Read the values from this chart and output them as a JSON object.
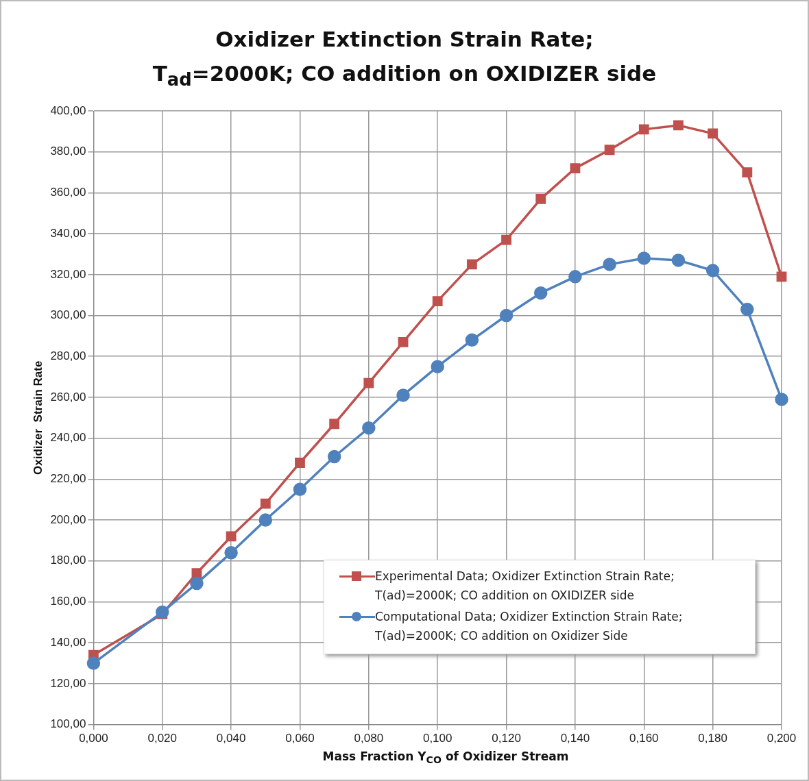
{
  "chart_data": {
    "type": "line",
    "title": "Oxidizer Extinction Strain Rate;\nT$_{ad}$=2000K; CO addition on OXIDIZER side",
    "xlabel": "Mass Fraction Y$_{CO}$ of Oxidizer Stream",
    "ylabel": "Oxidizer  Strain Rate",
    "x": [
      0,
      0.02,
      0.03,
      0.04,
      0.05,
      0.06,
      0.07,
      0.08,
      0.09,
      0.1,
      0.11,
      0.12,
      0.13,
      0.14,
      0.15,
      0.16,
      0.17,
      0.18,
      0.19,
      0.2
    ],
    "series": [
      {
        "name": "Experimental Data; Oxidizer Extinction Strain Rate; T(ad)=2000K; CO addition on OXIDIZER side",
        "color": "#c0504d",
        "marker": "square",
        "values": [
          134,
          154,
          174,
          192,
          208,
          228,
          247,
          267,
          287,
          307,
          325,
          337,
          357,
          372,
          381,
          391,
          393,
          389,
          370,
          319
        ]
      },
      {
        "name": "Computational Data; Oxidizer Extinction Strain Rate; T(ad)=2000K; CO addition on Oxidizer Side",
        "color": "#4f81bd",
        "marker": "circle",
        "values": [
          130,
          155,
          169,
          184,
          200,
          215,
          231,
          245,
          261,
          275,
          288,
          300,
          311,
          319,
          325,
          328,
          327,
          322,
          303,
          259
        ]
      }
    ],
    "xlim": [
      0,
      0.2
    ],
    "ylim": [
      100,
      400
    ],
    "xticks": [
      {
        "value": 0,
        "label": "0,000"
      },
      {
        "value": 0.02,
        "label": "0,020"
      },
      {
        "value": 0.04,
        "label": "0,040"
      },
      {
        "value": 0.06,
        "label": "0,060"
      },
      {
        "value": 0.08,
        "label": "0,080"
      },
      {
        "value": 0.1,
        "label": "0,100"
      },
      {
        "value": 0.12,
        "label": "0,120"
      },
      {
        "value": 0.14,
        "label": "0,140"
      },
      {
        "value": 0.16,
        "label": "0,160"
      },
      {
        "value": 0.18,
        "label": "0,180"
      },
      {
        "value": 0.2,
        "label": "0,200"
      }
    ],
    "yticks": [
      {
        "value": 100,
        "label": "100,00"
      },
      {
        "value": 120,
        "label": "120,00"
      },
      {
        "value": 140,
        "label": "140,00"
      },
      {
        "value": 160,
        "label": "160,00"
      },
      {
        "value": 180,
        "label": "180,00"
      },
      {
        "value": 200,
        "label": "200,00"
      },
      {
        "value": 220,
        "label": "220,00"
      },
      {
        "value": 240,
        "label": "240,00"
      },
      {
        "value": 260,
        "label": "260,00"
      },
      {
        "value": 280,
        "label": "280,00"
      },
      {
        "value": 300,
        "label": "300,00"
      },
      {
        "value": 320,
        "label": "320,00"
      },
      {
        "value": 340,
        "label": "340,00"
      },
      {
        "value": 360,
        "label": "360,00"
      },
      {
        "value": 380,
        "label": "380,00"
      },
      {
        "value": 400,
        "label": "400,00"
      }
    ],
    "grid": true,
    "legend": "bottom right"
  }
}
